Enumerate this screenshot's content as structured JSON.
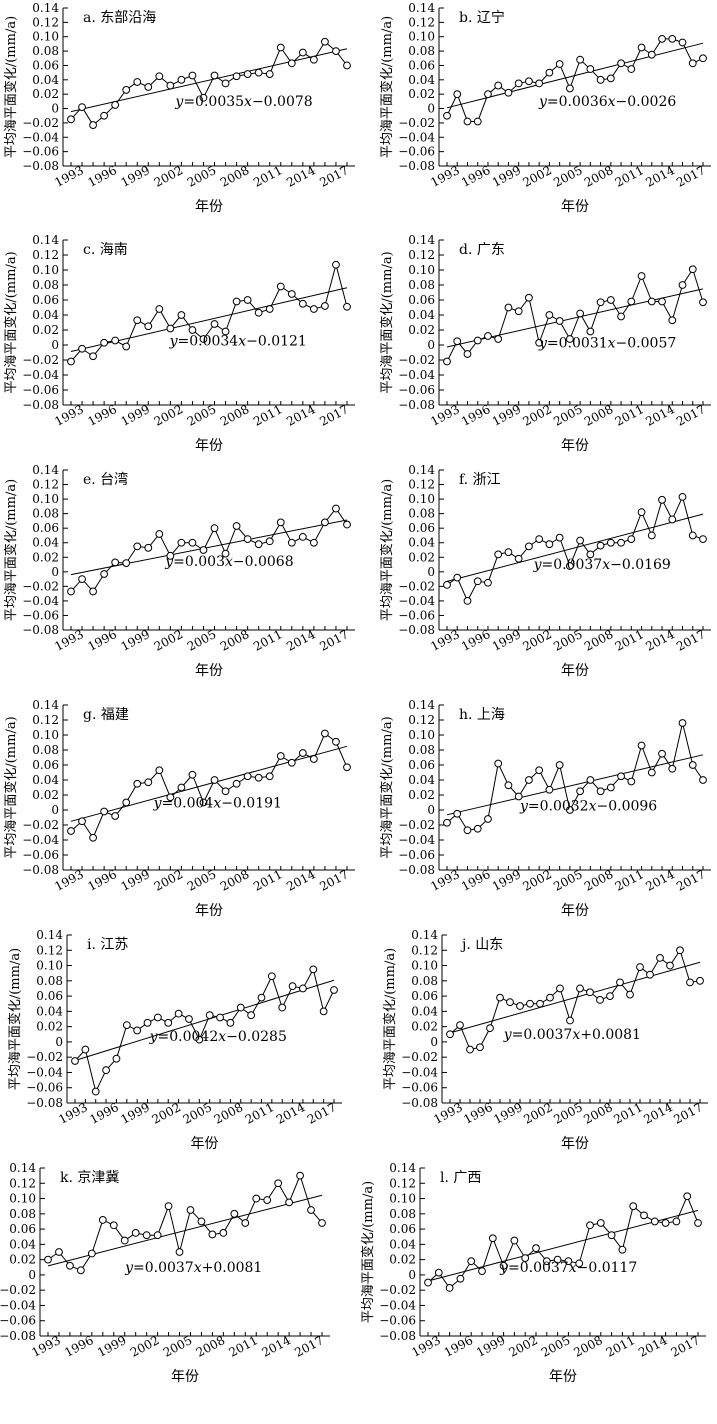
{
  "shared": {
    "x": [
      1993,
      1994,
      1995,
      1996,
      1997,
      1998,
      1999,
      2000,
      2001,
      2002,
      2003,
      2004,
      2005,
      2006,
      2007,
      2008,
      2009,
      2010,
      2011,
      2012,
      2013,
      2014,
      2015,
      2016,
      2017,
      2018
    ],
    "xticks": [
      1993,
      1996,
      1999,
      2002,
      2005,
      2008,
      2011,
      2014,
      2017
    ],
    "yticks": [
      -0.08,
      -0.06,
      -0.04,
      -0.02,
      0,
      0.02,
      0.04,
      0.06,
      0.08,
      0.1,
      0.12,
      0.14
    ],
    "ytick_labels": [
      "−0.08",
      "−0.06",
      "−0.04",
      "−0.02",
      "0",
      "0.02",
      "0.04",
      "0.06",
      "0.08",
      "0.10",
      "0.12",
      "0.14"
    ]
  },
  "chart_data": [
    {
      "type": "line",
      "title": "a. 东部沿海",
      "xlabel": "年份",
      "ylabel": "平均海平面变化/(mm/a)",
      "ylim": [
        -0.08,
        0.14
      ],
      "values": [
        -0.015,
        0.002,
        -0.023,
        -0.01,
        0.005,
        0.026,
        0.037,
        0.03,
        0.045,
        0.032,
        0.04,
        0.046,
        0.015,
        0.046,
        0.035,
        0.045,
        0.048,
        0.05,
        0.048,
        0.085,
        0.063,
        0.078,
        0.068,
        0.093,
        0.08,
        0.06
      ],
      "trend": {
        "slope": 0.0035,
        "intercept": -0.0078
      },
      "equation": {
        "y": "y",
        "rest": "=0.0035",
        "x": "x",
        "tail": "−0.0078"
      }
    },
    {
      "type": "line",
      "title": "b. 辽宁",
      "xlabel": "年份",
      "ylabel": "平均海平面变化/(mm/a)",
      "ylim": [
        -0.08,
        0.14
      ],
      "values": [
        -0.01,
        0.02,
        -0.018,
        -0.018,
        0.02,
        0.032,
        0.022,
        0.035,
        0.038,
        0.035,
        0.05,
        0.062,
        0.028,
        0.068,
        0.055,
        0.04,
        0.042,
        0.063,
        0.055,
        0.085,
        0.075,
        0.097,
        0.097,
        0.092,
        0.063,
        0.07
      ],
      "trend": {
        "slope": 0.0036,
        "intercept": -0.0026
      },
      "equation": {
        "y": "y",
        "rest": "=0.0036",
        "x": "x",
        "tail": "−0.0026"
      }
    },
    {
      "type": "line",
      "title": "c. 海南",
      "xlabel": "年份",
      "ylabel": "平均海平面变化/(mm/a)",
      "ylim": [
        -0.08,
        0.14
      ],
      "values": [
        -0.022,
        -0.005,
        -0.015,
        0.003,
        0.006,
        -0.002,
        0.033,
        0.025,
        0.048,
        0.022,
        0.04,
        0.02,
        0.008,
        0.028,
        0.018,
        0.058,
        0.06,
        0.043,
        0.048,
        0.078,
        0.068,
        0.055,
        0.048,
        0.052,
        0.107,
        0.051
      ],
      "trend": {
        "slope": 0.0034,
        "intercept": -0.0121
      },
      "equation": {
        "y": "y",
        "rest": "=0.0034",
        "x": "x",
        "tail": "−0.0121"
      }
    },
    {
      "type": "line",
      "title": "d. 广东",
      "xlabel": "年份",
      "ylabel": "平均海平面变化/(mm/a)",
      "ylim": [
        -0.08,
        0.14
      ],
      "values": [
        -0.022,
        0.005,
        -0.012,
        0.006,
        0.012,
        0.008,
        0.05,
        0.045,
        0.063,
        0.003,
        0.04,
        0.032,
        0.008,
        0.042,
        0.018,
        0.057,
        0.06,
        0.038,
        0.058,
        0.092,
        0.058,
        0.058,
        0.033,
        0.08,
        0.101,
        0.057
      ],
      "trend": {
        "slope": 0.0031,
        "intercept": -0.0057
      },
      "equation": {
        "y": "y",
        "rest": "=0.0031",
        "x": "x",
        "tail": "−0.0057"
      }
    },
    {
      "type": "line",
      "title": "e. 台湾",
      "xlabel": "年份",
      "ylabel": "平均海平面变化/(mm/a)",
      "ylim": [
        -0.08,
        0.14
      ],
      "values": [
        -0.027,
        -0.01,
        -0.027,
        -0.003,
        0.013,
        0.012,
        0.035,
        0.033,
        0.052,
        0.022,
        0.04,
        0.04,
        0.03,
        0.06,
        0.025,
        0.063,
        0.045,
        0.038,
        0.042,
        0.068,
        0.04,
        0.048,
        0.04,
        0.068,
        0.087,
        0.065
      ],
      "trend": {
        "slope": 0.003,
        "intercept": -0.0068
      },
      "equation": {
        "y": "y",
        "rest": "=0.003",
        "x": "x",
        "tail": "−0.0068"
      }
    },
    {
      "type": "line",
      "title": "f. 浙江",
      "xlabel": "年份",
      "ylabel": "平均海平面变化/(mm/a)",
      "ylim": [
        -0.08,
        0.14
      ],
      "values": [
        -0.018,
        -0.008,
        -0.04,
        -0.013,
        -0.015,
        0.024,
        0.027,
        0.018,
        0.035,
        0.045,
        0.038,
        0.047,
        0.008,
        0.043,
        0.024,
        0.036,
        0.04,
        0.04,
        0.045,
        0.082,
        0.05,
        0.099,
        0.072,
        0.103,
        0.05,
        0.045
      ],
      "trend": {
        "slope": 0.0037,
        "intercept": -0.0169
      },
      "equation": {
        "y": "y",
        "rest": "=0.0037",
        "x": "x",
        "tail": "−0.0169"
      }
    },
    {
      "type": "line",
      "title": "g. 福建",
      "xlabel": "年份",
      "ylabel": "平均海平面变化/(mm/a)",
      "ylim": [
        -0.08,
        0.14
      ],
      "values": [
        -0.028,
        -0.015,
        -0.037,
        -0.002,
        -0.008,
        0.01,
        0.035,
        0.037,
        0.053,
        0.017,
        0.03,
        0.047,
        0.01,
        0.04,
        0.025,
        0.035,
        0.045,
        0.043,
        0.045,
        0.072,
        0.063,
        0.076,
        0.068,
        0.102,
        0.091,
        0.057
      ],
      "trend": {
        "slope": 0.004,
        "intercept": -0.0191
      },
      "equation": {
        "y": "y",
        "rest": "=0.004",
        "x": "x",
        "tail": "−0.0191"
      }
    },
    {
      "type": "line",
      "title": "h. 上海",
      "xlabel": "年份",
      "ylabel": "平均海平面变化/(mm/a)",
      "ylim": [
        -0.08,
        0.14
      ],
      "values": [
        -0.017,
        -0.005,
        -0.027,
        -0.025,
        -0.012,
        0.062,
        0.033,
        0.018,
        0.04,
        0.053,
        0.027,
        0.06,
        0.0,
        0.025,
        0.04,
        0.025,
        0.03,
        0.045,
        0.038,
        0.086,
        0.05,
        0.075,
        0.055,
        0.116,
        0.06,
        0.04
      ],
      "trend": {
        "slope": 0.0032,
        "intercept": -0.0096
      },
      "equation": {
        "y": "y",
        "rest": "=0.0032",
        "x": "x",
        "tail": "−0.0096"
      }
    },
    {
      "type": "line",
      "title": "i. 江苏",
      "xlabel": "年份",
      "ylabel": "平均海平面变化/(mm/a)",
      "ylim": [
        -0.08,
        0.14
      ],
      "values": [
        -0.025,
        -0.01,
        -0.065,
        -0.037,
        -0.022,
        0.022,
        0.015,
        0.025,
        0.032,
        0.025,
        0.037,
        0.03,
        0.003,
        0.035,
        0.032,
        0.025,
        0.045,
        0.035,
        0.058,
        0.086,
        0.045,
        0.073,
        0.07,
        0.095,
        0.04,
        0.068
      ],
      "trend": {
        "slope": 0.0042,
        "intercept": -0.0285
      },
      "equation": {
        "y": "y",
        "rest": "=0.0042",
        "x": "x",
        "tail": "−0.0285"
      }
    },
    {
      "type": "line",
      "title": "j. 山东",
      "xlabel": "年份",
      "ylabel": "平均海平面变化/(mm/a)",
      "ylim": [
        -0.08,
        0.14
      ],
      "values": [
        0.01,
        0.022,
        -0.01,
        -0.007,
        0.018,
        0.058,
        0.052,
        0.047,
        0.05,
        0.05,
        0.058,
        0.07,
        0.028,
        0.07,
        0.065,
        0.055,
        0.06,
        0.078,
        0.062,
        0.098,
        0.088,
        0.11,
        0.1,
        0.12,
        0.078,
        0.08
      ],
      "trend": {
        "slope": 0.0037,
        "intercept": 0.0081
      },
      "equation": {
        "y": "y",
        "rest": "=0.0037",
        "x": "x",
        "tail": "+0.0081"
      }
    },
    {
      "type": "line",
      "title": "k. 京津冀",
      "xlabel": "年份",
      "ylabel": "",
      "ylim": [
        -0.08,
        0.14
      ],
      "values": [
        0.02,
        0.03,
        0.012,
        0.006,
        0.028,
        0.072,
        0.065,
        0.045,
        0.055,
        0.052,
        0.052,
        0.09,
        0.03,
        0.085,
        0.07,
        0.053,
        0.055,
        0.08,
        0.068,
        0.1,
        0.098,
        0.12,
        0.095,
        0.13,
        0.085,
        0.068
      ],
      "trend": {
        "slope": 0.0037,
        "intercept": 0.0081
      },
      "equation": {
        "y": "y",
        "rest": "=0.0037",
        "x": "x",
        "tail": "+0.0081"
      }
    },
    {
      "type": "line",
      "title": "l. 广西",
      "xlabel": "年份",
      "ylabel": "平均海平面变化/(mm/a)",
      "ylim": [
        -0.08,
        0.14
      ],
      "values": [
        -0.01,
        0.003,
        -0.017,
        -0.005,
        0.018,
        0.005,
        0.048,
        0.012,
        0.045,
        0.022,
        0.035,
        0.018,
        0.02,
        0.018,
        0.015,
        0.065,
        0.068,
        0.052,
        0.033,
        0.09,
        0.078,
        0.07,
        0.068,
        0.07,
        0.103,
        0.068
      ],
      "trend": {
        "slope": 0.0037,
        "intercept": -0.0117
      },
      "equation": {
        "y": "y",
        "rest": "=0.0037",
        "x": "x",
        "tail": "−0.0117"
      }
    }
  ]
}
